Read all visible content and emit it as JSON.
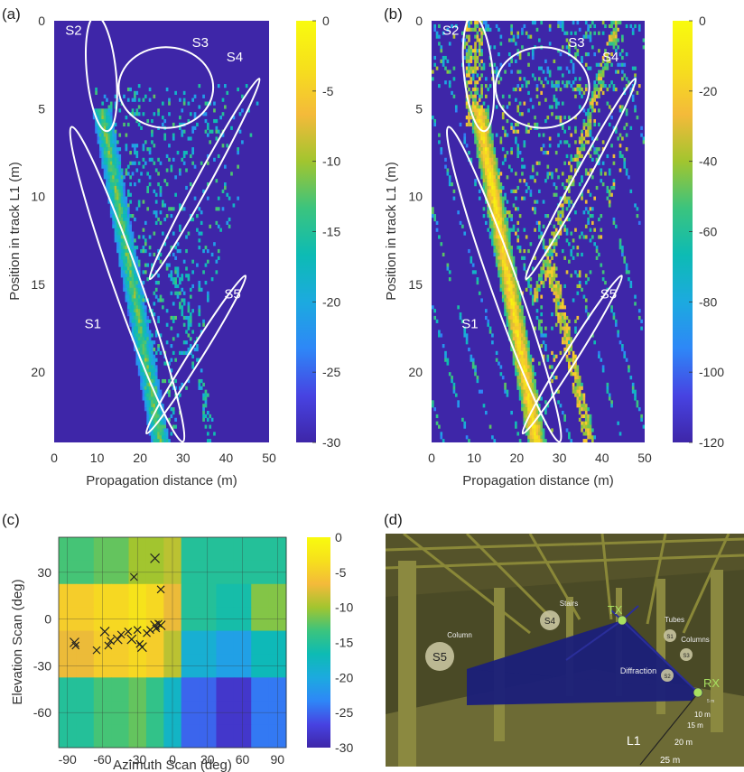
{
  "panels": {
    "a": "(a)",
    "b": "(b)",
    "c": "(c)",
    "d": "(d)"
  },
  "chart_data": [
    {
      "id": "a",
      "type": "heatmap",
      "xlabel": "Propagation distance (m)",
      "ylabel": "Position in track L1 (m)",
      "xlim": [
        0,
        50
      ],
      "ylim": [
        0,
        24
      ],
      "xticks": [
        0,
        10,
        20,
        30,
        40,
        50
      ],
      "yticks": [
        0,
        5,
        10,
        15,
        20
      ],
      "colorbar": {
        "min": -30,
        "max": 0,
        "ticks": [
          0,
          -5,
          -10,
          -15,
          -20,
          -25,
          -30
        ]
      },
      "colormap": [
        "#3e26a8",
        "#4743e2",
        "#2e87f7",
        "#1caadf",
        "#0dbbb4",
        "#3bc47e",
        "#a2c52f",
        "#f4ba3a",
        "#f6e01c",
        "#f9fb0e"
      ],
      "regions": [
        {
          "label": "S1",
          "cx": 17,
          "cy": 15,
          "rx": 3.2,
          "ry": 9.5,
          "rot": -0.34
        },
        {
          "label": "S2",
          "cx": 11,
          "cy": 3,
          "rx": 3.4,
          "ry": 3.3,
          "rot": -0.1
        },
        {
          "label": "S3",
          "cx": 26,
          "cy": 3.8,
          "rx": 11,
          "ry": 2.3,
          "rot": 0
        },
        {
          "label": "S4",
          "cx": 35,
          "cy": 9,
          "rx": 1.6,
          "ry": 6.5,
          "rot": 0.5
        },
        {
          "label": "S5",
          "cx": 33,
          "cy": 19,
          "rx": 1.5,
          "ry": 5.3,
          "rot": 0.56
        }
      ],
      "label_positions": {
        "S1": [
          9,
          17.5
        ],
        "S2": [
          4.5,
          0.8
        ],
        "S3": [
          34,
          1.5
        ],
        "S4": [
          42,
          2.3
        ],
        "S5": [
          41.5,
          15.8
        ]
      }
    },
    {
      "id": "b",
      "type": "heatmap",
      "xlabel": "Propagation distance (m)",
      "ylabel": "Position in track L1 (m)",
      "xlim": [
        0,
        50
      ],
      "ylim": [
        0,
        24
      ],
      "xticks": [
        0,
        10,
        20,
        30,
        40,
        50
      ],
      "yticks": [
        0,
        5,
        10,
        15,
        20
      ],
      "colorbar": {
        "min": -120,
        "max": 0,
        "ticks": [
          0,
          -20,
          -40,
          -60,
          -80,
          -100,
          -120
        ]
      },
      "colormap": [
        "#3e26a8",
        "#4743e2",
        "#2e87f7",
        "#1caadf",
        "#0dbbb4",
        "#3bc47e",
        "#a2c52f",
        "#f4ba3a",
        "#f6e01c",
        "#f9fb0e"
      ],
      "regions": [
        {
          "label": "S1",
          "cx": 17,
          "cy": 15,
          "rx": 3.2,
          "ry": 9.5,
          "rot": -0.34
        },
        {
          "label": "S2",
          "cx": 11,
          "cy": 3,
          "rx": 3.4,
          "ry": 3.3,
          "rot": -0.1
        },
        {
          "label": "S3",
          "cx": 26,
          "cy": 3.8,
          "rx": 11,
          "ry": 2.3,
          "rot": 0
        },
        {
          "label": "S4",
          "cx": 35,
          "cy": 9,
          "rx": 1.6,
          "ry": 6.5,
          "rot": 0.5
        },
        {
          "label": "S5",
          "cx": 33,
          "cy": 19,
          "rx": 1.5,
          "ry": 5.3,
          "rot": 0.56
        }
      ],
      "label_positions": {
        "S1": [
          9,
          17.5
        ],
        "S2": [
          4.5,
          0.8
        ],
        "S3": [
          34,
          1.5
        ],
        "S4": [
          42,
          2.3
        ],
        "S5": [
          41.5,
          15.8
        ]
      }
    },
    {
      "id": "c",
      "type": "heatmap",
      "xlabel": "Azimuth Scan (deg)",
      "ylabel": "Elevation Scan (deg)",
      "xticks": [
        -90,
        -60,
        -30,
        0,
        30,
        60,
        90
      ],
      "yticks": [
        30,
        0,
        -30,
        -60
      ],
      "x_centers": [
        -90,
        -75,
        -60,
        -45,
        -30,
        -15,
        0,
        15,
        30,
        45,
        60,
        75,
        90
      ],
      "y_centers": [
        45,
        30,
        15,
        0,
        -15,
        -30,
        -45,
        -60,
        -75
      ],
      "colorbar": {
        "min": -30,
        "max": 0,
        "ticks": [
          0,
          -5,
          -10,
          -15,
          -20,
          -25,
          -30
        ]
      },
      "values": [
        [
          -13,
          -13,
          -12,
          -12,
          -10,
          -10,
          -9,
          -15,
          -15,
          -15,
          -15,
          -15,
          -15
        ],
        [
          -13,
          -13,
          -12,
          -12,
          -10,
          -10,
          -9,
          -15,
          -15,
          -15,
          -15,
          -15,
          -15
        ],
        [
          -5,
          -5,
          -4,
          -4,
          -3,
          -4,
          -7,
          -15,
          -15,
          -16,
          -16,
          -11,
          -11
        ],
        [
          -5,
          -5,
          -4,
          -4,
          -3,
          -4,
          -7,
          -15,
          -15,
          -16,
          -16,
          -11,
          -11
        ],
        [
          -7,
          -7,
          -5,
          -5,
          -4,
          -5,
          -9,
          -19,
          -19,
          -21,
          -21,
          -17,
          -17
        ],
        [
          -7,
          -7,
          -5,
          -5,
          -4,
          -5,
          -9,
          -19,
          -19,
          -21,
          -21,
          -17,
          -17
        ],
        [
          -15,
          -15,
          -13,
          -13,
          -12,
          -14,
          -18,
          -25,
          -25,
          -28,
          -28,
          -24,
          -24
        ],
        [
          -15,
          -15,
          -13,
          -13,
          -12,
          -14,
          -18,
          -25,
          -25,
          -28,
          -28,
          -24,
          -24
        ],
        [
          -15,
          -15,
          -13,
          -13,
          -12,
          -14,
          -18,
          -25,
          -25,
          -28,
          -28,
          -24,
          -24
        ]
      ],
      "markers": [
        [
          -84,
          -15
        ],
        [
          -83,
          -17
        ],
        [
          -65,
          -20
        ],
        [
          -58,
          -8
        ],
        [
          -55,
          -17
        ],
        [
          -53,
          -14
        ],
        [
          -47,
          -13
        ],
        [
          -44,
          -10
        ],
        [
          -38,
          -8
        ],
        [
          -35,
          -13
        ],
        [
          -30,
          -7
        ],
        [
          -28,
          -16
        ],
        [
          -26,
          -18
        ],
        [
          -22,
          -9
        ],
        [
          -19,
          -7
        ],
        [
          -15,
          -4
        ],
        [
          -14,
          -6
        ],
        [
          -12,
          -3
        ],
        [
          -10,
          -4
        ],
        [
          -33,
          27
        ],
        [
          -10,
          19
        ],
        [
          -15,
          39
        ]
      ]
    }
  ],
  "scene": {
    "labels": {
      "column": "Column",
      "stairs": "Stairs",
      "tubes": "Tubes",
      "columns": "Columns",
      "diffraction": "Diffraction",
      "tx": "TX",
      "rx": "RX",
      "s1": "S1",
      "s2": "S2",
      "s3": "S3",
      "s4": "S4",
      "s5": "S5",
      "d5": "5 m",
      "d10": "10 m",
      "d15": "15 m",
      "d20": "20 m",
      "d25": "25 m",
      "track": "L1"
    },
    "colors": {
      "structure": "#7c7a30",
      "ray": "#1b1f7a",
      "floor": "#a6a35a",
      "marker": "#a8e060"
    }
  }
}
